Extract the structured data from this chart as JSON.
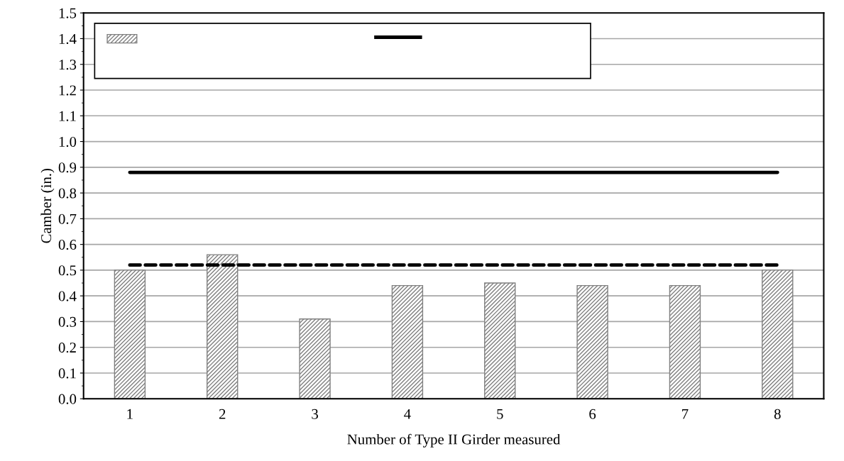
{
  "chart_data": {
    "type": "bar",
    "xlabel": "Number of Type II Girder measured",
    "ylabel": "Camber (in.)",
    "categories": [
      "1",
      "2",
      "3",
      "4",
      "5",
      "6",
      "7",
      "8"
    ],
    "series": [
      {
        "color": "#808080",
        "values": [
          0.5,
          0.56,
          0.31,
          0.44,
          0.45,
          0.44,
          0.44,
          0.5
        ]
      },
      {
        "type": "line",
        "color": "#000000",
        "line_style": "solid",
        "values": [
          0.88,
          0.88,
          0.88,
          0.88,
          0.88,
          0.88,
          0.88,
          0.88
        ]
      },
      {
        "type": "line",
        "color": "#000000",
        "line_style": "dashed",
        "values": [
          0.52,
          0.52,
          0.52,
          0.52,
          0.52,
          0.52,
          0.52,
          0.52
        ]
      }
    ],
    "ylim": [
      0.0,
      1.5
    ],
    "yticks": [
      {
        "value": 0,
        "label": "0.0"
      },
      0.1,
      0.2,
      0.3,
      0.4,
      0.5,
      0.6,
      0.7,
      0.8,
      0.9,
      {
        "value": 1,
        "label": "1.0"
      },
      1.1,
      1.2,
      1.3,
      1.4,
      1.5
    ],
    "grid": "y",
    "marker": "none"
  }
}
